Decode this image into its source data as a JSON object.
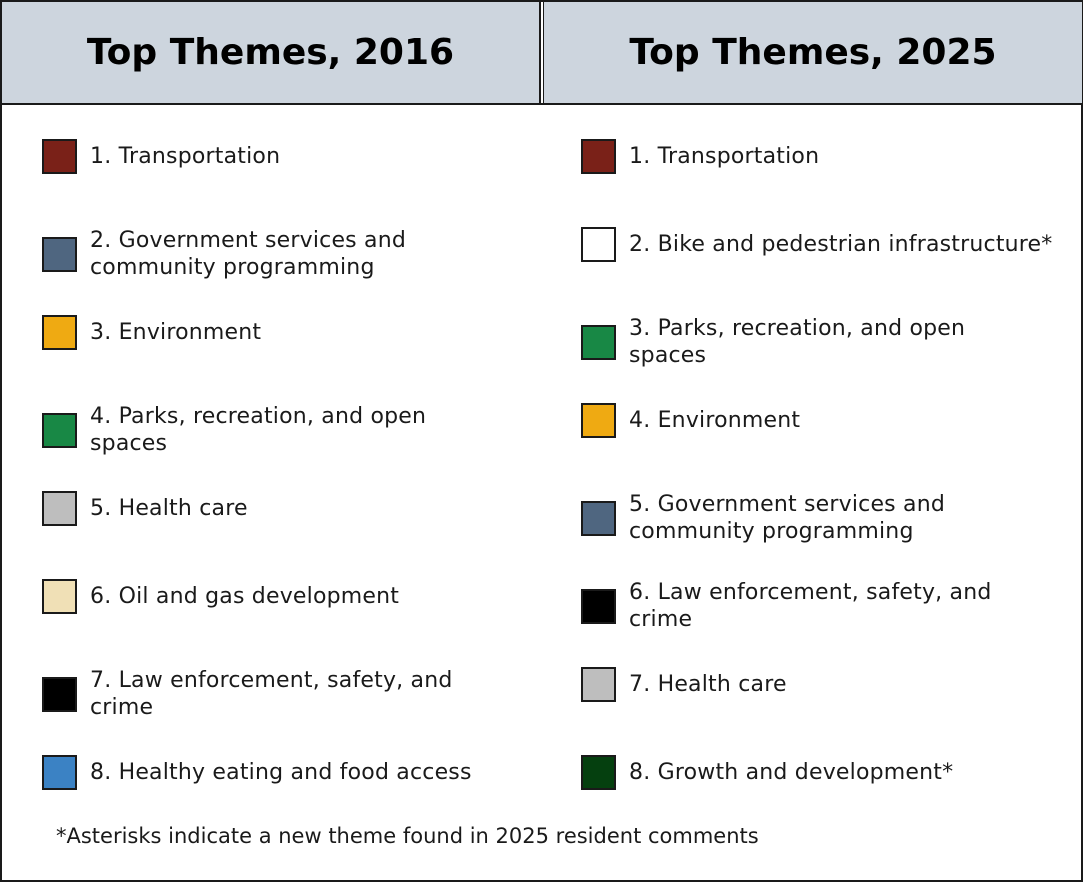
{
  "left": {
    "title": "Top Themes, 2016",
    "items": [
      {
        "label": "1. Transportation",
        "color": "#7a2118"
      },
      {
        "label": "2. Government services and\ncommunity programming",
        "color": "#4f6680"
      },
      {
        "label": "3. Environment",
        "color": "#efaa12"
      },
      {
        "label": "4. Parks, recreation, and open\nspaces",
        "color": "#188845"
      },
      {
        "label": "5. Health care",
        "color": "#bebebe"
      },
      {
        "label": "6. Oil and gas development",
        "color": "#f0e0b6"
      },
      {
        "label": "7. Law enforcement, safety, and\ncrime",
        "color": "#000000"
      },
      {
        "label": "8. Healthy eating and food access",
        "color": "#3b82c4"
      }
    ]
  },
  "right": {
    "title": "Top Themes, 2025",
    "items": [
      {
        "label": "1. Transportation",
        "color": "#7a2118"
      },
      {
        "label": "2. Bike and pedestrian infrastructure*",
        "color": "#ffffff"
      },
      {
        "label": "3. Parks, recreation, and open\nspaces",
        "color": "#188845"
      },
      {
        "label": "4. Environment",
        "color": "#efaa12"
      },
      {
        "label": "5. Government services and\ncommunity programming",
        "color": "#4f6680"
      },
      {
        "label": "6. Law enforcement, safety, and\ncrime",
        "color": "#000000"
      },
      {
        "label": "7. Health care",
        "color": "#bebebe"
      },
      {
        "label": "8. Growth and development*",
        "color": "#05400f"
      }
    ]
  },
  "footnote": "*Asterisks indicate a new theme found in 2025 resident comments"
}
